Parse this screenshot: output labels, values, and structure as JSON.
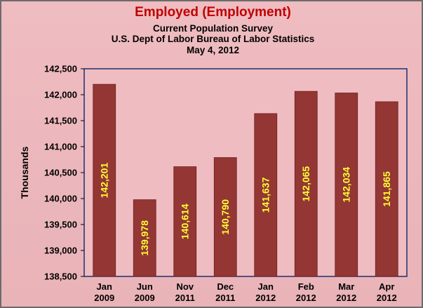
{
  "chart_data": {
    "type": "bar",
    "title": "Employed (Employment)",
    "subtitle": [
      "Current Population Survey",
      "U.S. Dept of Labor Bureau of Labor Statistics",
      "May 4, 2012"
    ],
    "ylabel": "Thousands",
    "xlabel": "",
    "ylim": [
      138500,
      142500
    ],
    "yticks": [
      138500,
      139000,
      139500,
      140000,
      140500,
      141000,
      141500,
      142000,
      142500
    ],
    "categories": [
      {
        "month": "Jan",
        "year": "2009"
      },
      {
        "month": "Jun",
        "year": "2009"
      },
      {
        "month": "Nov",
        "year": "2011"
      },
      {
        "month": "Dec",
        "year": "2011"
      },
      {
        "month": "Jan",
        "year": "2012"
      },
      {
        "month": "Feb",
        "year": "2012"
      },
      {
        "month": "Mar",
        "year": "2012"
      },
      {
        "month": "Apr",
        "year": "2012"
      }
    ],
    "values": [
      142201,
      139978,
      140614,
      140790,
      141637,
      142065,
      142034,
      141865
    ],
    "value_labels": [
      "142,201",
      "139,978",
      "140,614",
      "140,790",
      "141,637",
      "142,065",
      "142,034",
      "141,865"
    ],
    "grid": false,
    "legend": "none",
    "colors": {
      "bar": "#943634",
      "bar_edge": "#6e2322",
      "value_label": "#ffff33",
      "plot_bg": "#efbcc1",
      "title": "#c00000"
    }
  }
}
